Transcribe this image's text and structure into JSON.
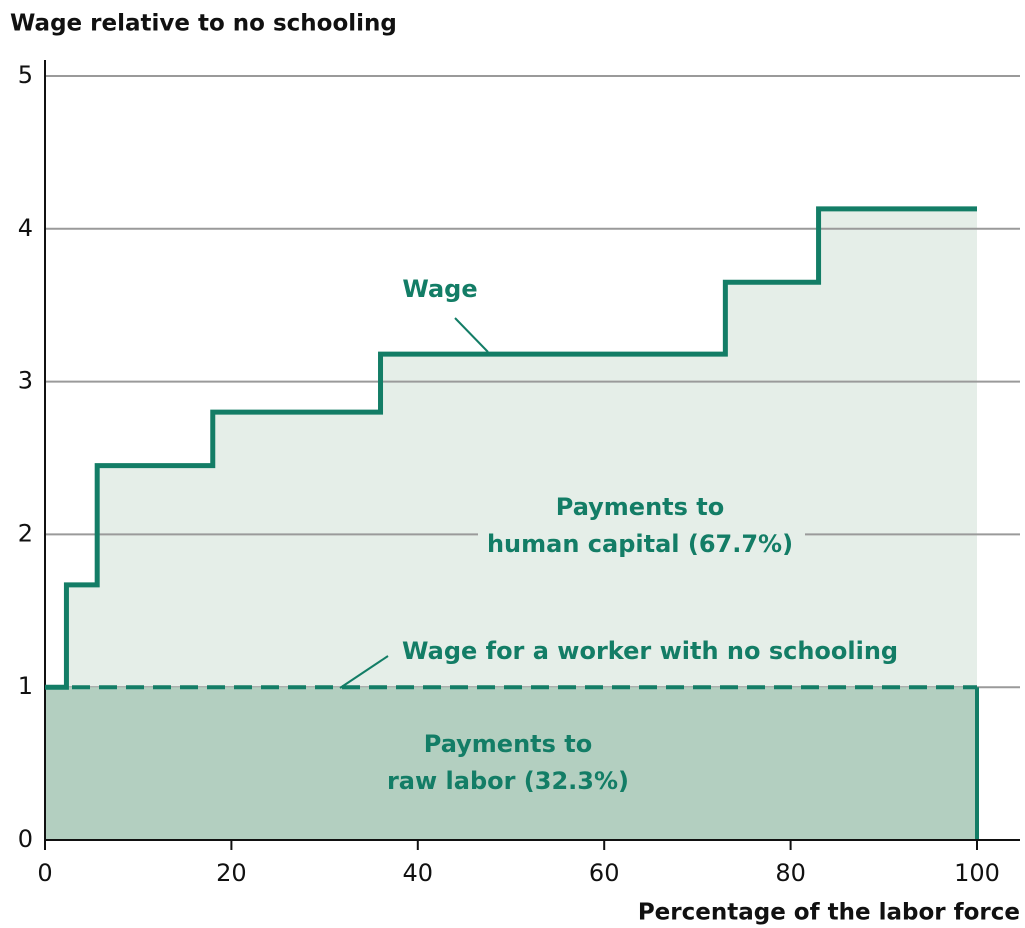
{
  "chart_data": {
    "type": "step",
    "y_label": "Wage relative to no schooling",
    "x_label": "Percentage of the labor force",
    "x": [
      0,
      2.3,
      5.6,
      18,
      36,
      73,
      83,
      100
    ],
    "values": [
      1,
      1.67,
      2.45,
      2.8,
      3.18,
      3.65,
      4.13,
      4.13
    ],
    "baseline": 1,
    "color": "#137d66",
    "area_color": "#e5eee8",
    "baseline_area_color": "#b3cfc0",
    "xlim": [
      0,
      100
    ],
    "ylim": [
      0,
      5
    ],
    "xticks": [
      0,
      20,
      40,
      60,
      80,
      100
    ],
    "yticks": [
      0,
      1,
      2,
      3,
      4,
      5
    ],
    "grid": true,
    "annotations": [
      {
        "lines": [
          "Wage"
        ]
      },
      {
        "lines": [
          "Payments to",
          "human capital (67.7%)"
        ]
      },
      {
        "lines": [
          "Wage for a worker with no schooling"
        ]
      },
      {
        "lines": [
          "Payments to",
          "raw labor (32.3%)"
        ]
      }
    ]
  }
}
